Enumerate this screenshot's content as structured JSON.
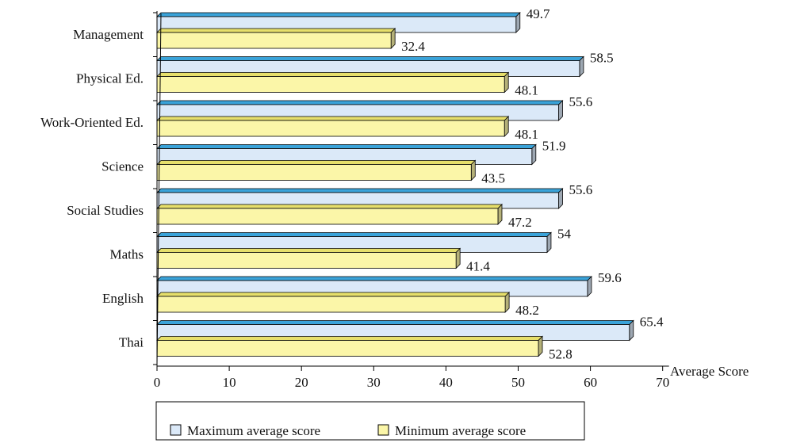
{
  "chart_data": {
    "type": "bar",
    "orientation": "horizontal",
    "bar_style": "3d",
    "categories": [
      "Management",
      "Physical Ed.",
      "Work-Oriented Ed.",
      "Science",
      "Social Studies",
      "Maths",
      "English",
      "Thai"
    ],
    "series": [
      {
        "name": "Maximum average score",
        "color": "#dbe9f8",
        "top_color": "#3aa3d9",
        "values": [
          49.7,
          58.5,
          55.6,
          51.9,
          55.6,
          54,
          59.6,
          65.4
        ],
        "labels": [
          "49.7",
          "58.5",
          "55.6",
          "51.9",
          "55.6",
          "54",
          "59.6",
          "65.4"
        ]
      },
      {
        "name": "Minimum average score",
        "color": "#fbf6a8",
        "top_color": "#e6df6b",
        "values": [
          32.4,
          48.1,
          48.1,
          43.5,
          47.2,
          41.4,
          48.2,
          52.8
        ],
        "labels": [
          "32.4",
          "48.1",
          "48.1",
          "43.5",
          "47.2",
          "41.4",
          "48.2",
          "52.8"
        ]
      }
    ],
    "xlabel": "Average Score",
    "xlim": [
      0,
      70
    ],
    "xticks": [
      0,
      10,
      20,
      30,
      40,
      50,
      60,
      70
    ],
    "xtick_labels": [
      "0",
      "10",
      "20",
      "30",
      "40",
      "50",
      "60",
      "70"
    ],
    "grid": false,
    "legend_position": "bottom"
  }
}
